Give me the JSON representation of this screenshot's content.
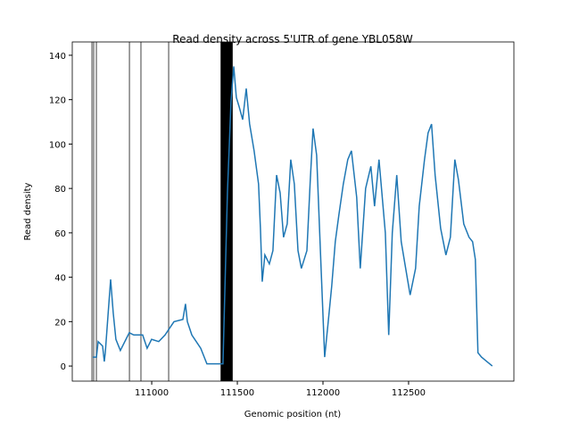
{
  "chart_data": {
    "type": "line",
    "title": "Read density across 5'UTR of gene YBL058W",
    "xlabel": "Genomic position (nt)",
    "ylabel": "Read density",
    "xlim": [
      110536,
      113115
    ],
    "ylim": [
      -6.8,
      146
    ],
    "xticks": [
      111000,
      111500,
      112000,
      112500
    ],
    "yticks": [
      0,
      20,
      40,
      60,
      80,
      100,
      120,
      140
    ],
    "grid": false,
    "series": [
      {
        "color": "#1f77b4",
        "x": [
          110656,
          110677,
          110687,
          110713,
          110723,
          110729,
          110744,
          110760,
          110775,
          110791,
          110817,
          110843,
          110869,
          110895,
          110947,
          110973,
          110999,
          111041,
          111078,
          111104,
          111130,
          111182,
          111197,
          111208,
          111234,
          111286,
          111322,
          111390,
          111416,
          111442,
          111463,
          111479,
          111494,
          111510,
          111531,
          111552,
          111572,
          111598,
          111624,
          111635,
          111645,
          111661,
          111687,
          111708,
          111729,
          111750,
          111770,
          111791,
          111812,
          111833,
          111854,
          111874,
          111906,
          111926,
          111942,
          111963,
          111989,
          112010,
          112031,
          112051,
          112072,
          112093,
          112119,
          112145,
          112166,
          112197,
          112218,
          112249,
          112280,
          112301,
          112327,
          112364,
          112384,
          112405,
          112431,
          112457,
          112483,
          112509,
          112541,
          112562,
          112593,
          112614,
          112634,
          112655,
          112687,
          112718,
          112744,
          112770,
          112791,
          112822,
          112853,
          112874,
          112890,
          112905,
          112926,
          112957,
          112989
        ],
        "values": [
          4,
          4,
          11,
          9,
          2,
          6,
          22,
          39,
          24,
          12,
          7,
          11,
          15,
          14,
          14,
          8,
          12,
          11,
          14,
          17,
          20,
          21,
          28,
          20,
          14,
          8,
          1,
          1,
          1,
          78,
          119,
          135,
          121,
          117,
          111,
          125,
          109,
          97,
          82,
          62,
          38,
          50,
          46,
          52,
          86,
          78,
          58,
          64,
          93,
          82,
          52,
          44,
          52,
          84,
          107,
          95,
          44,
          4,
          20,
          36,
          56,
          68,
          82,
          93,
          97,
          76,
          44,
          80,
          90,
          72,
          93,
          60,
          14,
          60,
          86,
          56,
          44,
          32,
          44,
          72,
          93,
          105,
          109,
          86,
          62,
          50,
          58,
          93,
          84,
          64,
          58,
          56,
          48,
          6,
          4,
          2,
          0
        ]
      }
    ],
    "vlines": [
      {
        "color": "#808080",
        "x": [
          110651,
          110661,
          110677,
          110870,
          110937,
          111099
        ]
      },
      {
        "color": "#000000",
        "x": [
          111406,
          111409,
          111412,
          111415,
          111418,
          111421,
          111424,
          111427,
          111430,
          111433,
          111436,
          111439,
          111442,
          111445,
          111448,
          111451,
          111454,
          111457,
          111460,
          111463,
          111466,
          111469
        ]
      }
    ]
  }
}
